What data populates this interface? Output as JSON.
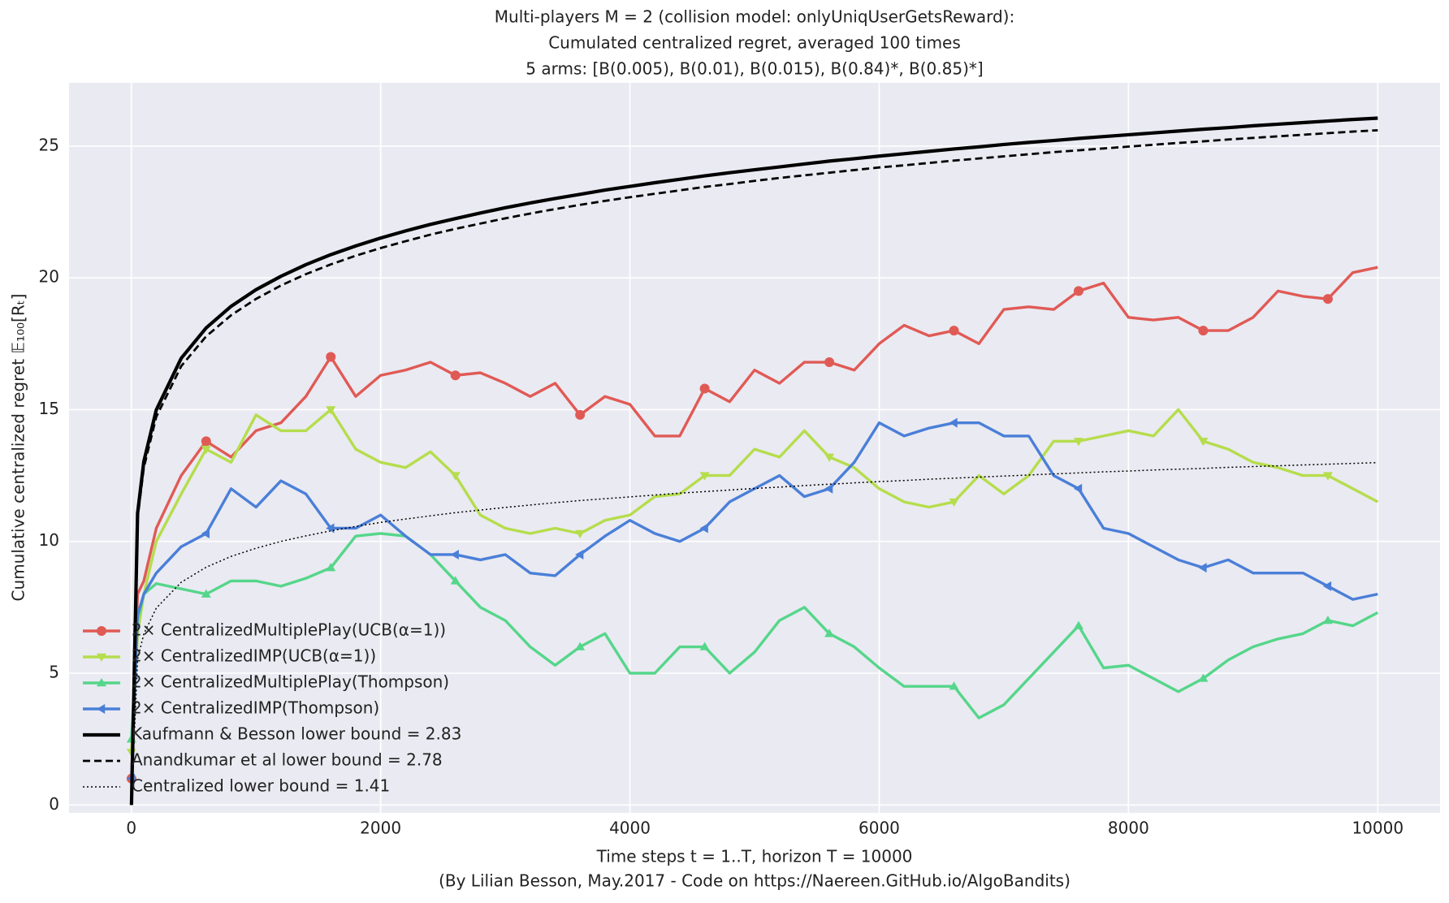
{
  "chart_data": {
    "type": "line",
    "title": [
      "Multi-players M = 2 (collision model: onlyUniqUserGetsReward):",
      "Cumulated centralized regret, averaged 100 times",
      "5 arms: [B(0.005), B(0.01), B(0.015), B(0.84)*, B(0.85)*]"
    ],
    "xlabel": "Time steps t = 1..T, horizon T = 10000",
    "footnote": "(By Lilian Besson, May.2017 - Code on https://Naereen.GitHub.io/AlgoBandits)",
    "ylabel": "Cumulative centralized regret 𝔼₁₀₀[Rₜ]",
    "x": [
      1,
      50,
      100,
      200,
      400,
      600,
      800,
      1000,
      1200,
      1400,
      1600,
      1800,
      2000,
      2200,
      2400,
      2600,
      2800,
      3000,
      3200,
      3400,
      3600,
      3800,
      4000,
      4200,
      4400,
      4600,
      4800,
      5000,
      5200,
      5400,
      5600,
      5800,
      6000,
      6200,
      6400,
      6600,
      6800,
      7000,
      7200,
      7400,
      7600,
      7800,
      8000,
      8200,
      8400,
      8600,
      8800,
      9000,
      9200,
      9400,
      9600,
      9800,
      10000
    ],
    "series": [
      {
        "name": "2× CentralizedMultiplePlay(UCB(α=1))",
        "color": "#e05a55",
        "marker": "circle",
        "linestyle": "solid",
        "values": [
          1.0,
          8.0,
          8.5,
          10.5,
          12.5,
          13.8,
          13.2,
          14.2,
          14.5,
          15.5,
          17.0,
          15.5,
          16.3,
          16.5,
          16.8,
          16.3,
          16.4,
          16.0,
          15.5,
          16.0,
          14.8,
          15.5,
          15.2,
          14.0,
          14.0,
          15.8,
          15.3,
          16.5,
          16.0,
          16.8,
          16.8,
          16.5,
          17.5,
          18.2,
          17.8,
          18.0,
          17.5,
          18.8,
          18.9,
          18.8,
          19.5,
          19.8,
          18.5,
          18.4,
          18.5,
          18.0,
          18.0,
          18.5,
          19.5,
          19.3,
          19.2,
          20.2,
          20.4
        ]
      },
      {
        "name": "2× CentralizedIMP(UCB(α=1))",
        "color": "#b5dd4c",
        "marker": "triangle-down",
        "linestyle": "solid",
        "values": [
          2.0,
          6.5,
          8.0,
          10.0,
          11.8,
          13.5,
          13.0,
          14.8,
          14.2,
          14.2,
          15.0,
          13.5,
          13.0,
          12.8,
          13.4,
          12.5,
          11.0,
          10.5,
          10.3,
          10.5,
          10.3,
          10.8,
          11.0,
          11.7,
          11.8,
          12.5,
          12.5,
          13.5,
          13.2,
          14.2,
          13.2,
          12.8,
          12.0,
          11.5,
          11.3,
          11.5,
          12.5,
          11.8,
          12.5,
          13.8,
          13.8,
          14.0,
          14.2,
          14.0,
          15.0,
          13.8,
          13.5,
          13.0,
          12.8,
          12.5,
          12.5,
          12.0,
          11.5
        ]
      },
      {
        "name": "2× CentralizedMultiplePlay(Thompson)",
        "color": "#55d68a",
        "marker": "triangle-up",
        "linestyle": "solid",
        "values": [
          2.5,
          7.0,
          8.0,
          8.4,
          8.2,
          8.0,
          8.5,
          8.5,
          8.3,
          8.6,
          9.0,
          10.2,
          10.3,
          10.2,
          9.5,
          8.5,
          7.5,
          7.0,
          6.0,
          5.3,
          6.0,
          6.5,
          5.0,
          5.0,
          6.0,
          6.0,
          5.0,
          5.8,
          7.0,
          7.5,
          6.5,
          6.0,
          5.2,
          4.5,
          4.5,
          4.5,
          3.3,
          3.8,
          4.8,
          5.8,
          6.8,
          5.2,
          5.3,
          4.8,
          4.3,
          4.8,
          5.5,
          6.0,
          6.3,
          6.5,
          7.0,
          6.8,
          7.3
        ]
      },
      {
        "name": "2× CentralizedIMP(Thompson)",
        "color": "#4a7fd8",
        "marker": "triangle-left",
        "linestyle": "solid",
        "values": [
          1.0,
          7.2,
          8.0,
          8.8,
          9.8,
          10.3,
          12.0,
          11.3,
          12.3,
          11.8,
          10.5,
          10.5,
          11.0,
          10.2,
          9.5,
          9.5,
          9.3,
          9.5,
          8.8,
          8.7,
          9.5,
          10.2,
          10.8,
          10.3,
          10.0,
          10.5,
          11.5,
          12.0,
          12.5,
          11.7,
          12.0,
          13.0,
          14.5,
          14.0,
          14.3,
          14.5,
          14.5,
          14.0,
          14.0,
          12.5,
          12.0,
          10.5,
          10.3,
          9.8,
          9.3,
          9.0,
          9.3,
          8.8,
          8.8,
          8.8,
          8.3,
          7.8,
          8.0
        ]
      },
      {
        "name": "Kaufmann & Besson lower bound = 2.83",
        "color": "#000000",
        "linestyle": "solid",
        "values": [
          0,
          11.07,
          13.03,
          14.99,
          16.95,
          18.1,
          18.92,
          19.55,
          20.06,
          20.5,
          20.88,
          21.21,
          21.51,
          21.78,
          22.03,
          22.25,
          22.46,
          22.66,
          22.84,
          23.01,
          23.17,
          23.33,
          23.47,
          23.61,
          23.74,
          23.87,
          23.99,
          24.1,
          24.21,
          24.32,
          24.43,
          24.52,
          24.62,
          24.71,
          24.8,
          24.89,
          24.97,
          25.06,
          25.14,
          25.21,
          25.29,
          25.36,
          25.43,
          25.5,
          25.57,
          25.64,
          25.7,
          25.77,
          25.83,
          25.89,
          25.95,
          26.01,
          26.06
        ]
      },
      {
        "name": "Anandkumar et al lower bound = 2.78",
        "color": "#000000",
        "linestyle": "dashed",
        "values": [
          0,
          10.88,
          12.8,
          14.73,
          16.65,
          17.78,
          18.58,
          19.2,
          19.71,
          20.14,
          20.51,
          20.84,
          21.13,
          21.39,
          21.64,
          21.86,
          22.06,
          22.26,
          22.44,
          22.61,
          22.77,
          22.92,
          23.06,
          23.19,
          23.32,
          23.45,
          23.56,
          23.68,
          23.79,
          23.89,
          23.99,
          24.09,
          24.19,
          24.27,
          24.36,
          24.45,
          24.53,
          24.61,
          24.69,
          24.77,
          24.84,
          24.91,
          24.98,
          25.05,
          25.12,
          25.18,
          25.25,
          25.31,
          25.37,
          25.43,
          25.49,
          25.55,
          25.6
        ]
      },
      {
        "name": "Centralized lower bound = 1.41",
        "color": "#000000",
        "linestyle": "dotted",
        "values": [
          0,
          5.52,
          6.49,
          7.47,
          8.45,
          9.02,
          9.43,
          9.74,
          10.0,
          10.21,
          10.4,
          10.57,
          10.72,
          10.85,
          10.97,
          11.09,
          11.19,
          11.29,
          11.38,
          11.47,
          11.55,
          11.62,
          11.69,
          11.76,
          11.83,
          11.89,
          11.95,
          12.01,
          12.06,
          12.12,
          12.17,
          12.22,
          12.27,
          12.31,
          12.36,
          12.4,
          12.44,
          12.48,
          12.52,
          12.56,
          12.6,
          12.64,
          12.67,
          12.71,
          12.74,
          12.77,
          12.81,
          12.84,
          12.87,
          12.9,
          12.93,
          12.96,
          12.99
        ]
      }
    ],
    "xlim": [
      -500,
      10500
    ],
    "ylim": [
      -0.3,
      27.4
    ],
    "xticks": [
      0,
      2000,
      4000,
      6000,
      8000,
      10000
    ],
    "yticks": [
      0,
      5,
      10,
      15,
      20,
      25
    ],
    "grid": true,
    "legend": "lower left"
  }
}
